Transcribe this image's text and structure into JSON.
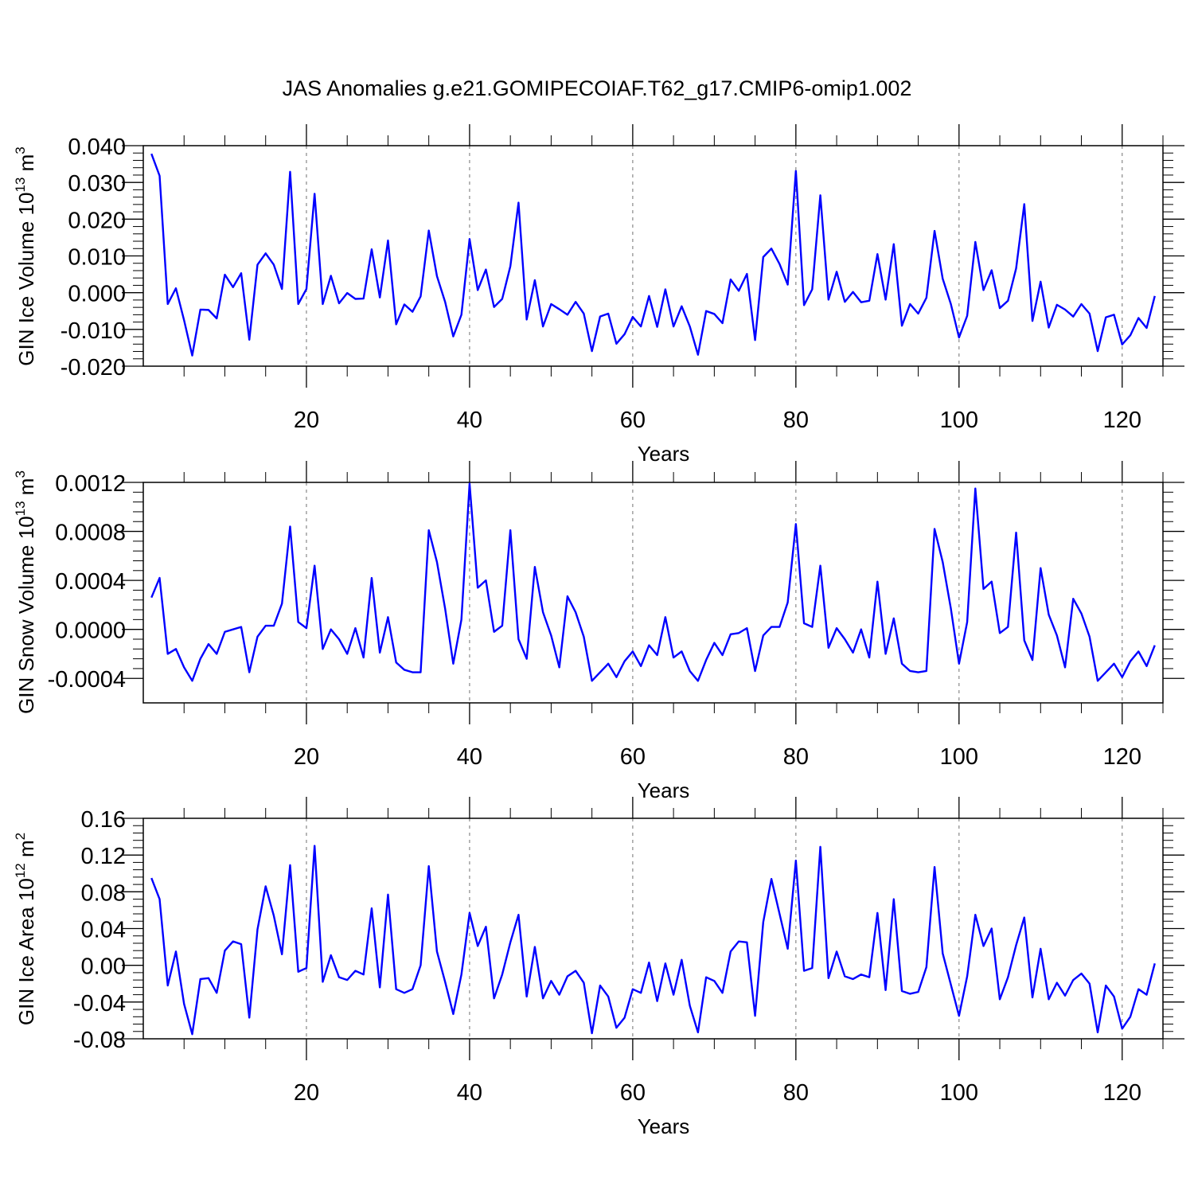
{
  "title": "JAS Anomalies g.e21.GOMIPECOIAF.T62_g17.CMIP6-omip1.002",
  "chart_data": [
    {
      "type": "line",
      "title": "JAS Anomalies g.e21.GOMIPECOIAF.T62_g17.CMIP6-omip1.002",
      "xlabel": "Years",
      "ylabel": "GIN Ice Volume 10",
      "ylabel_sup": "13",
      "ylabel_unit": "m",
      "ylabel_unit_sup": "3",
      "xlim": [
        0,
        125
      ],
      "ylim": [
        -0.02,
        0.04
      ],
      "xticks": [
        20,
        40,
        60,
        80,
        100,
        120
      ],
      "xtick_labels": [
        "20",
        "40",
        "60",
        "80",
        "100",
        "120"
      ],
      "yticks": [
        -0.02,
        -0.01,
        0.0,
        0.01,
        0.02,
        0.03,
        0.04
      ],
      "ytick_labels": [
        "-0.020",
        "-0.010",
        "0.000",
        "0.010",
        "0.020",
        "0.030",
        "0.040"
      ],
      "grid": "vertical dashed at major x ticks",
      "line_color": "#0000ff",
      "x_start": 0,
      "values": [
        0.0378,
        0.0318,
        -0.0031,
        0.0012,
        -0.0075,
        -0.0171,
        -0.0046,
        -0.0047,
        -0.007,
        0.0049,
        0.0015,
        0.0053,
        -0.0128,
        0.0076,
        0.0107,
        0.0076,
        0.001,
        0.0329,
        -0.0031,
        0.001,
        0.0269,
        -0.0031,
        0.0046,
        -0.0029,
        -0.0001,
        -0.0017,
        -0.0016,
        0.0118,
        -0.0013,
        0.0142,
        -0.0086,
        -0.0032,
        -0.0052,
        -0.001,
        0.0169,
        0.0045,
        -0.0025,
        -0.0119,
        -0.006,
        0.0146,
        0.0007,
        0.0063,
        -0.0039,
        -0.0017,
        0.0072,
        0.0245,
        -0.0073,
        0.0034,
        -0.0092,
        -0.0031,
        -0.0045,
        -0.006,
        -0.0025,
        -0.0057,
        -0.0159,
        -0.0065,
        -0.0057,
        -0.0139,
        -0.0113,
        -0.0066,
        -0.0092,
        -0.0009,
        -0.0093,
        0.0009,
        -0.0092,
        -0.0037,
        -0.0092,
        -0.0169,
        -0.005,
        -0.0058,
        -0.0083,
        0.0036,
        0.0005,
        0.0051,
        -0.0129,
        0.0097,
        0.012,
        0.0078,
        0.0022,
        0.0331,
        -0.0034,
        0.0009,
        0.0265,
        -0.0019,
        0.0057,
        -0.0025,
        0.0002,
        -0.0026,
        -0.0022,
        0.0105,
        -0.0019,
        0.0132,
        -0.009,
        -0.0031,
        -0.0057,
        -0.0014,
        0.0168,
        0.0038,
        -0.0031,
        -0.0122,
        -0.0063,
        0.0138,
        0.0007,
        0.0061,
        -0.0042,
        -0.0022,
        0.0066,
        0.0241,
        -0.0077,
        0.003,
        -0.0095,
        -0.0033,
        -0.0046,
        -0.0065,
        -0.0031,
        -0.0057,
        -0.0159,
        -0.0067,
        -0.006,
        -0.0141,
        -0.0116,
        -0.0069,
        -0.0096,
        -0.0009
      ]
    },
    {
      "type": "line",
      "xlabel": "Years",
      "ylabel": "GIN Snow Volume 10",
      "ylabel_sup": "13",
      "ylabel_unit": "m",
      "ylabel_unit_sup": "3",
      "xlim": [
        0,
        125
      ],
      "ylim": [
        -0.0006,
        0.0012
      ],
      "xticks": [
        20,
        40,
        60,
        80,
        100,
        120
      ],
      "xtick_labels": [
        "20",
        "40",
        "60",
        "80",
        "100",
        "120"
      ],
      "yticks": [
        -0.0004,
        0.0,
        0.0004,
        0.0008,
        0.0012
      ],
      "ytick_labels": [
        "-0.0004",
        "0.0000",
        "0.0004",
        "0.0008",
        "0.0012"
      ],
      "grid": "vertical dashed at major x ticks",
      "line_color": "#0000ff",
      "x_start": 0,
      "values": [
        0.00026,
        0.00042,
        -0.0002,
        -0.00016,
        -0.00031,
        -0.00042,
        -0.00024,
        -0.00012,
        -0.0002,
        -2e-05,
        0.0,
        2e-05,
        -0.00035,
        -6e-05,
        3e-05,
        3e-05,
        0.00021,
        0.00084,
        6e-05,
        1e-05,
        0.00052,
        -0.00016,
        0.0,
        -8e-05,
        -0.0002,
        1e-05,
        -0.00023,
        0.00042,
        -0.00019,
        0.0001,
        -0.00027,
        -0.00033,
        -0.00035,
        -0.00035,
        0.00081,
        0.00055,
        0.00017,
        -0.00028,
        8e-05,
        0.00119,
        0.00034,
        0.0004,
        -2e-05,
        3e-05,
        0.00081,
        -8e-05,
        -0.00024,
        0.00051,
        0.00014,
        -5e-05,
        -0.00031,
        0.00027,
        0.00014,
        -6e-05,
        -0.00042,
        -0.00035,
        -0.00028,
        -0.00039,
        -0.00026,
        -0.00018,
        -0.0003,
        -0.00013,
        -0.00021,
        0.0001,
        -0.00023,
        -0.00018,
        -0.00034,
        -0.00042,
        -0.00025,
        -0.00011,
        -0.00021,
        -4e-05,
        -3e-05,
        1e-05,
        -0.00034,
        -5e-05,
        2e-05,
        2e-05,
        0.00022,
        0.00086,
        5e-05,
        2e-05,
        0.00052,
        -0.00015,
        1e-05,
        -8e-05,
        -0.00019,
        0.0,
        -0.00023,
        0.00039,
        -0.0002,
        9e-05,
        -0.00028,
        -0.00034,
        -0.00035,
        -0.00034,
        0.00082,
        0.00055,
        0.00017,
        -0.00028,
        6e-05,
        0.00115,
        0.00033,
        0.00039,
        -3e-05,
        2e-05,
        0.00079,
        -9e-05,
        -0.00025,
        0.0005,
        0.00012,
        -5e-05,
        -0.00031,
        0.00025,
        0.00013,
        -6e-05,
        -0.00042,
        -0.00035,
        -0.00028,
        -0.00039,
        -0.00026,
        -0.00018,
        -0.0003,
        -0.00013
      ]
    },
    {
      "type": "line",
      "xlabel": "Years",
      "ylabel": "GIN Ice Area 10",
      "ylabel_sup": "12",
      "ylabel_unit": "m",
      "ylabel_unit_sup": "2",
      "xlim": [
        0,
        125
      ],
      "ylim": [
        -0.08,
        0.16
      ],
      "xticks": [
        20,
        40,
        60,
        80,
        100,
        120
      ],
      "xtick_labels": [
        "20",
        "40",
        "60",
        "80",
        "100",
        "120"
      ],
      "yticks": [
        -0.08,
        -0.04,
        0.0,
        0.04,
        0.08,
        0.12,
        0.16
      ],
      "ytick_labels": [
        "-0.08",
        "-0.04",
        "0.00",
        "0.04",
        "0.08",
        "0.12",
        "0.16"
      ],
      "grid": "vertical dashed at major x ticks",
      "line_color": "#0000ff",
      "x_start": 0,
      "values": [
        0.095,
        0.072,
        -0.022,
        0.015,
        -0.042,
        -0.075,
        -0.015,
        -0.014,
        -0.03,
        0.016,
        0.026,
        0.023,
        -0.057,
        0.039,
        0.086,
        0.054,
        0.012,
        0.109,
        -0.007,
        -0.003,
        0.13,
        -0.018,
        0.011,
        -0.013,
        -0.016,
        -0.006,
        -0.01,
        0.062,
        -0.024,
        0.077,
        -0.026,
        -0.03,
        -0.026,
        0.0,
        0.108,
        0.015,
        -0.018,
        -0.053,
        -0.01,
        0.057,
        0.021,
        0.042,
        -0.036,
        -0.01,
        0.025,
        0.055,
        -0.034,
        0.02,
        -0.036,
        -0.017,
        -0.032,
        -0.012,
        -0.006,
        -0.019,
        -0.074,
        -0.022,
        -0.034,
        -0.068,
        -0.057,
        -0.026,
        -0.03,
        0.003,
        -0.039,
        0.002,
        -0.032,
        0.006,
        -0.044,
        -0.073,
        -0.013,
        -0.017,
        -0.03,
        0.015,
        0.026,
        0.025,
        -0.055,
        0.047,
        0.094,
        0.056,
        0.018,
        0.114,
        -0.006,
        -0.003,
        0.129,
        -0.014,
        0.015,
        -0.012,
        -0.015,
        -0.01,
        -0.013,
        0.057,
        -0.027,
        0.072,
        -0.028,
        -0.031,
        -0.029,
        -0.002,
        0.107,
        0.013,
        -0.021,
        -0.055,
        -0.012,
        0.055,
        0.021,
        0.04,
        -0.037,
        -0.013,
        0.022,
        0.052,
        -0.035,
        0.018,
        -0.037,
        -0.019,
        -0.033,
        -0.016,
        -0.009,
        -0.02,
        -0.073,
        -0.022,
        -0.034,
        -0.069,
        -0.056,
        -0.026,
        -0.032,
        0.002
      ]
    }
  ]
}
